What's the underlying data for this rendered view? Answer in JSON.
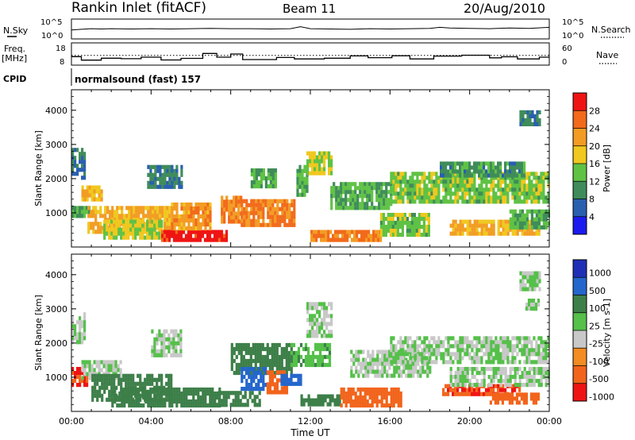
{
  "header": {
    "station": "Rankin Inlet (fitACF)",
    "beam": "Beam 11",
    "date": "20/Aug/2010"
  },
  "left_labels": {
    "nsky": "N.Sky",
    "freq_line1": "Freq.",
    "freq_line2": "[MHz]",
    "cpid": "CPID"
  },
  "right_labels": {
    "nsearch": "N.Search",
    "nave": "Nave"
  },
  "cpid_text": "normalsound (fast) 157",
  "chart_data": [
    {
      "type": "line",
      "name": "noise",
      "left_ticks": [
        "10^5",
        "10^0"
      ],
      "right_ticks": [
        "10^5",
        "10^0"
      ],
      "x_hours": [
        0,
        0.5,
        1,
        1.5,
        2,
        3,
        4,
        5,
        6,
        7,
        8,
        9,
        10,
        11,
        11.5,
        12,
        13,
        14,
        15,
        16,
        17,
        18,
        18.5,
        19,
        20,
        21,
        22,
        23,
        24
      ],
      "nsky_log": [
        2.2,
        2.4,
        2.6,
        2.5,
        2.6,
        2.5,
        2.6,
        2.5,
        2.6,
        2.7,
        2.6,
        2.6,
        2.5,
        2.6,
        3.2,
        2.6,
        2.5,
        2.4,
        2.6,
        2.5,
        2.6,
        2.7,
        3.0,
        2.8,
        2.7,
        2.6,
        2.8,
        2.7,
        3.0
      ]
    },
    {
      "type": "line",
      "name": "frequency",
      "left_ticks": [
        "18",
        "8"
      ],
      "right_ticks": [
        "60",
        "0"
      ],
      "reference_freq_mhz": 12.2,
      "steps": [
        [
          0,
          11.5
        ],
        [
          0.5,
          9.5
        ],
        [
          1.5,
          10.6
        ],
        [
          2.5,
          10.3
        ],
        [
          3.5,
          11.2
        ],
        [
          4.5,
          9.6
        ],
        [
          5.5,
          10.5
        ],
        [
          6.6,
          13.3
        ],
        [
          7.3,
          11.2
        ],
        [
          8.0,
          13.0
        ],
        [
          8.6,
          9.8
        ],
        [
          10.3,
          11.0
        ],
        [
          11.2,
          10.2
        ],
        [
          12.7,
          10.6
        ],
        [
          14.0,
          11.9
        ],
        [
          14.9,
          10.9
        ],
        [
          16.1,
          12.0
        ],
        [
          17.0,
          10.2
        ],
        [
          18.2,
          11.8
        ],
        [
          19.6,
          12.3
        ],
        [
          21.0,
          10.8
        ],
        [
          21.6,
          11.4
        ],
        [
          22.4,
          10.2
        ],
        [
          23.5,
          11.2
        ],
        [
          24,
          11.2
        ]
      ]
    },
    {
      "type": "heatmap",
      "name": "power",
      "ylabel": "Slant Range [km]",
      "yticks": [
        "1000",
        "2000",
        "3000",
        "4000"
      ],
      "colorbar_label": "Power [dB]",
      "colorbar_ticks": [
        "4",
        "8",
        "12",
        "16",
        "20",
        "24",
        "28"
      ],
      "colors": [
        "#1b1bef",
        "#2a5fb0",
        "#3f8c5a",
        "#5fc245",
        "#f0c81f",
        "#f29c24",
        "#f26a1b",
        "#ef1414"
      ],
      "regions": [
        {
          "x": [
            0.0,
            1.3
          ],
          "y": [
            900,
            1200
          ],
          "value": 12
        },
        {
          "x": [
            0.0,
            0.6
          ],
          "y": [
            2000,
            2900
          ],
          "value": 8
        },
        {
          "x": [
            0.5,
            1.5
          ],
          "y": [
            1450,
            1800
          ],
          "value": 20
        },
        {
          "x": [
            0.8,
            5.0
          ],
          "y": [
            400,
            1200
          ],
          "value": 20
        },
        {
          "x": [
            1.6,
            4.5
          ],
          "y": [
            250,
            800
          ],
          "value": 16
        },
        {
          "x": [
            3.8,
            5.5
          ],
          "y": [
            1800,
            2400
          ],
          "value": 8
        },
        {
          "x": [
            4.5,
            7.8
          ],
          "y": [
            180,
            500
          ],
          "value": 30
        },
        {
          "x": [
            5.0,
            7.0
          ],
          "y": [
            600,
            1300
          ],
          "value": 22
        },
        {
          "x": [
            7.5,
            8.5
          ],
          "y": [
            800,
            1500
          ],
          "value": 24
        },
        {
          "x": [
            8.5,
            11.2
          ],
          "y": [
            700,
            1400
          ],
          "value": 24
        },
        {
          "x": [
            9.0,
            10.2
          ],
          "y": [
            1800,
            2300
          ],
          "value": 12
        },
        {
          "x": [
            11.3,
            11.8
          ],
          "y": [
            1500,
            2400
          ],
          "value": 12
        },
        {
          "x": [
            11.8,
            13.0
          ],
          "y": [
            2200,
            2800
          ],
          "value": 16
        },
        {
          "x": [
            12.0,
            15.5
          ],
          "y": [
            180,
            500
          ],
          "value": 24
        },
        {
          "x": [
            13.0,
            16.0
          ],
          "y": [
            1100,
            1900
          ],
          "value": 12
        },
        {
          "x": [
            15.5,
            18.0
          ],
          "y": [
            400,
            1000
          ],
          "value": 14
        },
        {
          "x": [
            16.0,
            24.0
          ],
          "y": [
            1300,
            2200
          ],
          "value": 14
        },
        {
          "x": [
            18.5,
            22.8
          ],
          "y": [
            2100,
            2500
          ],
          "value": 10
        },
        {
          "x": [
            19.0,
            23.5
          ],
          "y": [
            450,
            800
          ],
          "value": 20
        },
        {
          "x": [
            22.0,
            24.0
          ],
          "y": [
            600,
            1100
          ],
          "value": 12
        },
        {
          "x": [
            22.5,
            23.5
          ],
          "y": [
            3600,
            4000
          ],
          "value": 8
        }
      ]
    },
    {
      "type": "heatmap",
      "name": "velocity",
      "xlabel": "Time UT",
      "ylabel": "Slant Range [km]",
      "xticks": [
        "00:00",
        "04:00",
        "08:00",
        "12:00",
        "16:00",
        "20:00",
        "00:00"
      ],
      "yticks": [
        "1000",
        "2000",
        "3000",
        "4000"
      ],
      "colorbar_label": "Velocity [m s-1]",
      "colorbar_ticks": [
        "1000",
        "500",
        "100",
        "25",
        "-25",
        "-100",
        "-500",
        "-1000"
      ],
      "colors": [
        "#1f2fb5",
        "#2466cc",
        "#3d7f49",
        "#55c04a",
        "#c8c8c8",
        "#f28c23",
        "#f2641c",
        "#ef1414"
      ],
      "regions": [
        {
          "x": [
            0.0,
            0.6
          ],
          "y": [
            2000,
            2900
          ],
          "value": 25
        },
        {
          "x": [
            0.0,
            0.8
          ],
          "y": [
            800,
            1300
          ],
          "value": -300
        },
        {
          "x": [
            0.5,
            2.5
          ],
          "y": [
            1000,
            1500
          ],
          "value": 25
        },
        {
          "x": [
            1.0,
            5.0
          ],
          "y": [
            400,
            1100
          ],
          "value": 150
        },
        {
          "x": [
            2.0,
            7.5
          ],
          "y": [
            180,
            700
          ],
          "value": 200
        },
        {
          "x": [
            4.0,
            5.5
          ],
          "y": [
            1700,
            2400
          ],
          "value": 25
        },
        {
          "x": [
            7.0,
            9.5
          ],
          "y": [
            180,
            600
          ],
          "value": 250
        },
        {
          "x": [
            8.0,
            11.0
          ],
          "y": [
            1100,
            2000
          ],
          "value": 120
        },
        {
          "x": [
            8.5,
            9.8
          ],
          "y": [
            700,
            1300
          ],
          "value": 700
        },
        {
          "x": [
            9.8,
            10.8
          ],
          "y": [
            600,
            1200
          ],
          "value": -200
        },
        {
          "x": [
            10.5,
            11.5
          ],
          "y": [
            800,
            1100
          ],
          "value": 600
        },
        {
          "x": [
            11.0,
            13.0
          ],
          "y": [
            1400,
            2000
          ],
          "value": 60
        },
        {
          "x": [
            11.8,
            13.0
          ],
          "y": [
            2200,
            3200
          ],
          "value": 25
        },
        {
          "x": [
            11.5,
            13.5
          ],
          "y": [
            180,
            500
          ],
          "value": 150
        },
        {
          "x": [
            13.5,
            16.5
          ],
          "y": [
            180,
            700
          ],
          "value": -150
        },
        {
          "x": [
            14.0,
            18.0
          ],
          "y": [
            1100,
            1800
          ],
          "value": 25
        },
        {
          "x": [
            16.0,
            24.0
          ],
          "y": [
            1500,
            2200
          ],
          "value": 25
        },
        {
          "x": [
            18.5,
            22.5
          ],
          "y": [
            500,
            800
          ],
          "value": -300
        },
        {
          "x": [
            19.0,
            24.0
          ],
          "y": [
            800,
            1300
          ],
          "value": 25
        },
        {
          "x": [
            21.0,
            23.5
          ],
          "y": [
            250,
            550
          ],
          "value": -250
        },
        {
          "x": [
            22.5,
            23.5
          ],
          "y": [
            3600,
            4100
          ],
          "value": 25
        },
        {
          "x": [
            22.8,
            23.5
          ],
          "y": [
            3000,
            3300
          ],
          "value": 25
        }
      ]
    }
  ]
}
